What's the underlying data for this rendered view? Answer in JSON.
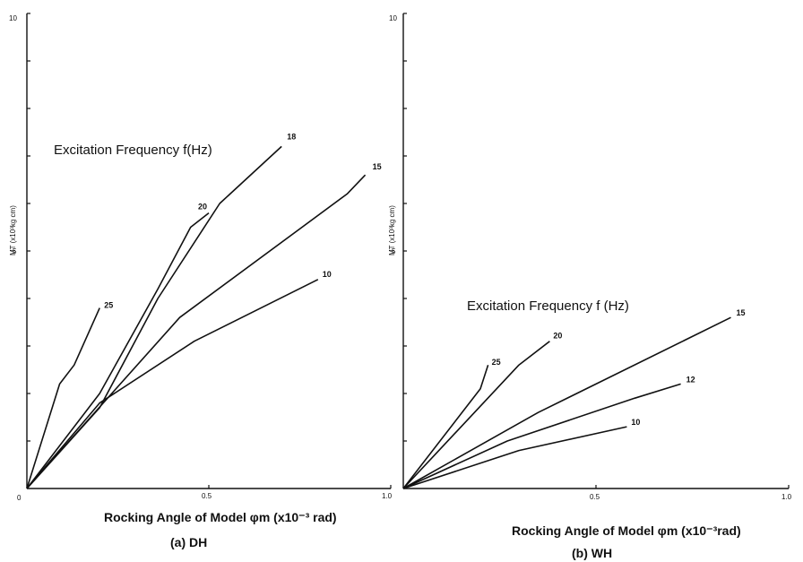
{
  "chart_data": [
    {
      "type": "line",
      "panel": "(a) DH",
      "annotation": "Excitation Frequency f(Hz)",
      "xlabel": "Rocking Angle of Model φm (x10⁻³ rad)",
      "ylabel": "MT (x10³kg cm)",
      "xlim": [
        0,
        1.0
      ],
      "ylim": [
        0,
        10
      ],
      "x_ticks": [
        "0",
        "0.5",
        "1.0"
      ],
      "y_ticks": [
        "5",
        "10"
      ],
      "series": [
        {
          "name": "25",
          "points": [
            [
              0,
              0
            ],
            [
              0.09,
              2.2
            ],
            [
              0.13,
              2.6
            ],
            [
              0.2,
              3.8
            ]
          ]
        },
        {
          "name": "20",
          "points": [
            [
              0,
              0
            ],
            [
              0.2,
              2.0
            ],
            [
              0.36,
              4.2
            ],
            [
              0.45,
              5.5
            ],
            [
              0.5,
              5.8
            ]
          ]
        },
        {
          "name": "18",
          "points": [
            [
              0,
              0
            ],
            [
              0.2,
              1.7
            ],
            [
              0.36,
              4.0
            ],
            [
              0.53,
              6.0
            ],
            [
              0.7,
              7.2
            ]
          ]
        },
        {
          "name": "15",
          "points": [
            [
              0,
              0
            ],
            [
              0.42,
              3.6
            ],
            [
              0.88,
              6.2
            ],
            [
              0.93,
              6.6
            ]
          ]
        },
        {
          "name": "10",
          "points": [
            [
              0,
              0
            ],
            [
              0.2,
              1.8
            ],
            [
              0.46,
              3.1
            ],
            [
              0.8,
              4.4
            ]
          ]
        }
      ]
    },
    {
      "type": "line",
      "panel": "(b) WH",
      "annotation": "Excitation Frequency f (Hz)",
      "xlabel": "Rocking Angle of Model φm (x10⁻³rad)",
      "ylabel": "MT (x10³kg cm)",
      "xlim": [
        0,
        1.0
      ],
      "ylim": [
        0,
        10
      ],
      "x_ticks": [
        "0.5",
        "1.0"
      ],
      "y_ticks": [
        "5",
        "10"
      ],
      "series": [
        {
          "name": "25",
          "points": [
            [
              0,
              0
            ],
            [
              0.2,
              2.1
            ],
            [
              0.22,
              2.6
            ]
          ]
        },
        {
          "name": "20",
          "points": [
            [
              0,
              0
            ],
            [
              0.3,
              2.6
            ],
            [
              0.38,
              3.1
            ]
          ]
        },
        {
          "name": "15",
          "points": [
            [
              0,
              0
            ],
            [
              0.35,
              1.6
            ],
            [
              0.85,
              3.6
            ]
          ]
        },
        {
          "name": "12",
          "points": [
            [
              0,
              0
            ],
            [
              0.27,
              1.0
            ],
            [
              0.6,
              1.9
            ],
            [
              0.72,
              2.2
            ]
          ]
        },
        {
          "name": "10",
          "points": [
            [
              0,
              0
            ],
            [
              0.3,
              0.8
            ],
            [
              0.58,
              1.3
            ]
          ]
        }
      ]
    }
  ]
}
